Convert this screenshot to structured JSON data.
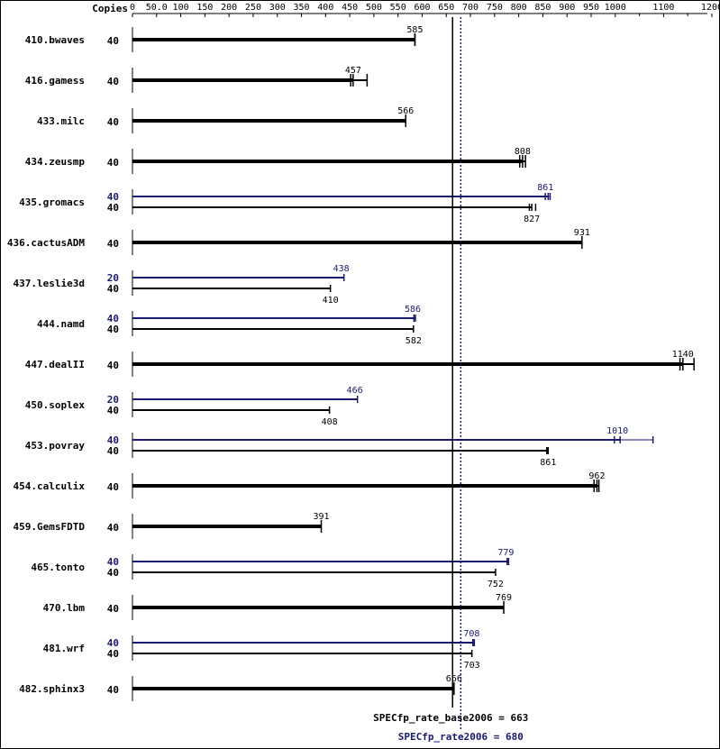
{
  "chart_data": {
    "type": "bar",
    "orientation": "horizontal",
    "copies_header": "Copies",
    "x_ticks": [
      0,
      50.0,
      100,
      150,
      200,
      250,
      300,
      350,
      400,
      450,
      500,
      550,
      600,
      650,
      700,
      750,
      800,
      850,
      900,
      950,
      1000,
      1100,
      1200
    ],
    "x_tick_labels": [
      "0",
      "50.0",
      "100",
      "150",
      "200",
      "250",
      "300",
      "350",
      "400",
      "450",
      "500",
      "550",
      "600",
      "650",
      "700",
      "750",
      "800",
      "850",
      "900",
      "950",
      "1000",
      "1100",
      "1200"
    ],
    "xlim": [
      0,
      1200
    ],
    "benchmarks": [
      {
        "name": "410.bwaves",
        "base": {
          "copies": "40",
          "value": 585,
          "label": "585",
          "ticks": [
            585,
            585
          ]
        },
        "peak": null
      },
      {
        "name": "416.gamess",
        "base": {
          "copies": "40",
          "value": 457,
          "label": "457",
          "ticks": [
            452,
            457,
            486
          ]
        },
        "peak": null
      },
      {
        "name": "433.milc",
        "base": {
          "copies": "40",
          "value": 566,
          "label": "566",
          "ticks": [
            566
          ]
        },
        "peak": null
      },
      {
        "name": "434.zeusmp",
        "base": {
          "copies": "40",
          "value": 808,
          "label": "808",
          "ticks": [
            802,
            808,
            814
          ]
        },
        "peak": null
      },
      {
        "name": "435.gromacs",
        "base": {
          "copies": "40",
          "value": 827,
          "label": "827",
          "ticks": [
            822,
            827,
            835
          ]
        },
        "peak": {
          "copies": "40",
          "value": 861,
          "label": "861",
          "ticks": [
            855,
            861,
            865
          ]
        }
      },
      {
        "name": "436.cactusADM",
        "base": {
          "copies": "40",
          "value": 931,
          "label": "931",
          "ticks": [
            931
          ]
        },
        "peak": null
      },
      {
        "name": "437.leslie3d",
        "base": {
          "copies": "40",
          "value": 410,
          "label": "410",
          "ticks": [
            410
          ]
        },
        "peak": {
          "copies": "20",
          "value": 438,
          "label": "438",
          "ticks": [
            438
          ]
        }
      },
      {
        "name": "444.namd",
        "base": {
          "copies": "40",
          "value": 582,
          "label": "582",
          "ticks": [
            582
          ]
        },
        "peak": {
          "copies": "40",
          "value": 586,
          "label": "586",
          "ticks": [
            583,
            586
          ]
        }
      },
      {
        "name": "447.dealII",
        "base": {
          "copies": "40",
          "value": 1140,
          "label": "1140",
          "ticks": [
            1134,
            1140,
            1163
          ]
        },
        "peak": null
      },
      {
        "name": "450.soplex",
        "base": {
          "copies": "40",
          "value": 408,
          "label": "408",
          "ticks": [
            408
          ]
        },
        "peak": {
          "copies": "20",
          "value": 466,
          "label": "466",
          "ticks": [
            466
          ]
        }
      },
      {
        "name": "453.povray",
        "base": {
          "copies": "40",
          "value": 861,
          "label": "861",
          "ticks": [
            858,
            861
          ]
        },
        "peak": {
          "copies": "40",
          "value": 1010,
          "label": "1010",
          "ticks": [
            998,
            1010,
            1078
          ]
        }
      },
      {
        "name": "454.calculix",
        "base": {
          "copies": "40",
          "value": 962,
          "label": "962",
          "ticks": [
            956,
            962,
            966
          ]
        },
        "peak": null
      },
      {
        "name": "459.GemsFDTD",
        "base": {
          "copies": "40",
          "value": 391,
          "label": "391",
          "ticks": [
            391
          ]
        },
        "peak": null
      },
      {
        "name": "465.tonto",
        "base": {
          "copies": "40",
          "value": 752,
          "label": "752",
          "ticks": [
            752
          ]
        },
        "peak": {
          "copies": "40",
          "value": 779,
          "label": "779",
          "ticks": [
            776,
            779
          ]
        }
      },
      {
        "name": "470.lbm",
        "base": {
          "copies": "40",
          "value": 769,
          "label": "769",
          "ticks": [
            769
          ]
        },
        "peak": null
      },
      {
        "name": "481.wrf",
        "base": {
          "copies": "40",
          "value": 703,
          "label": "703",
          "ticks": [
            703
          ]
        },
        "peak": {
          "copies": "40",
          "value": 708,
          "label": "708",
          "ticks": [
            705,
            708
          ]
        }
      },
      {
        "name": "482.sphinx3",
        "base": {
          "copies": "40",
          "value": 666,
          "label": "666",
          "ticks": [
            666
          ]
        },
        "peak": null
      }
    ],
    "summary": {
      "base_label": "SPECfp_rate_base2006 = 663",
      "base_value": 663,
      "peak_label": "SPECfp_rate2006 = 680",
      "peak_value": 680
    },
    "colors": {
      "base": "#000000",
      "peak": "#191970",
      "text": "#000000",
      "frame": "#000000"
    }
  }
}
